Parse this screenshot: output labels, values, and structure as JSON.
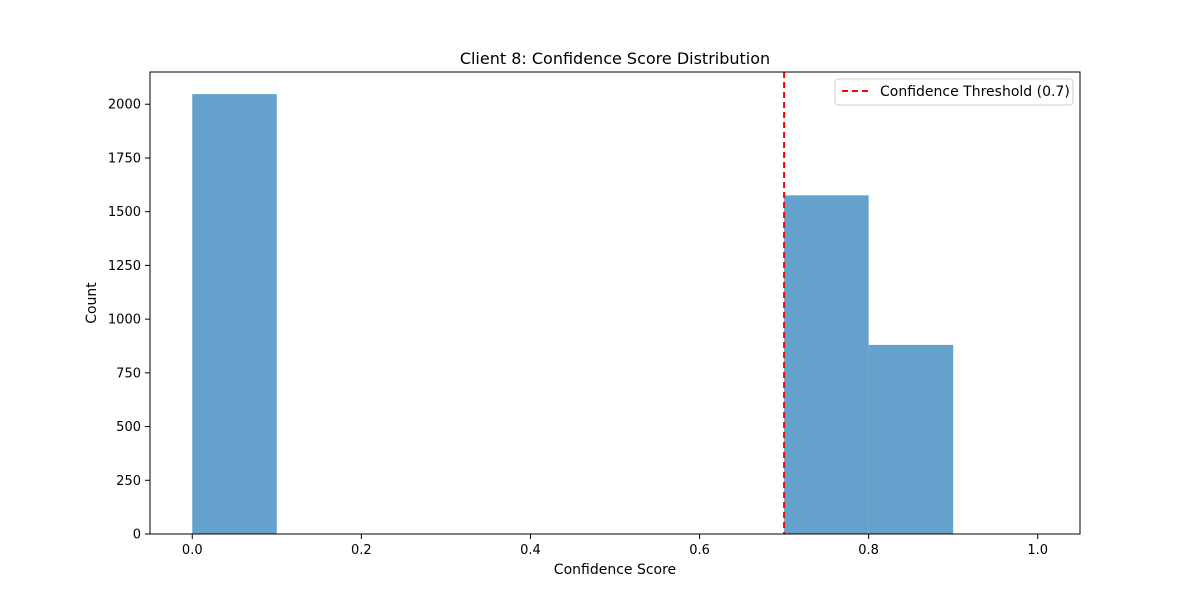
{
  "chart_data": {
    "type": "bar",
    "title": "Client 8: Confidence Score Distribution",
    "xlabel": "Confidence Score",
    "ylabel": "Count",
    "xlim": [
      -0.05,
      1.05
    ],
    "ylim": [
      0,
      2150
    ],
    "x_ticks": [
      0.0,
      0.2,
      0.4,
      0.6,
      0.8,
      1.0
    ],
    "x_tick_labels": [
      "0.0",
      "0.2",
      "0.4",
      "0.6",
      "0.8",
      "1.0"
    ],
    "y_ticks": [
      0,
      250,
      500,
      750,
      1000,
      1250,
      1500,
      1750,
      2000
    ],
    "y_tick_labels": [
      "0",
      "250",
      "500",
      "750",
      "1000",
      "1250",
      "1500",
      "1750",
      "2000"
    ],
    "bins": [
      {
        "start": 0.0,
        "end": 0.1,
        "count": 2047
      },
      {
        "start": 0.1,
        "end": 0.2,
        "count": 0
      },
      {
        "start": 0.2,
        "end": 0.3,
        "count": 0
      },
      {
        "start": 0.3,
        "end": 0.4,
        "count": 0
      },
      {
        "start": 0.4,
        "end": 0.5,
        "count": 0
      },
      {
        "start": 0.5,
        "end": 0.6,
        "count": 0
      },
      {
        "start": 0.6,
        "end": 0.7,
        "count": 0
      },
      {
        "start": 0.7,
        "end": 0.8,
        "count": 1576
      },
      {
        "start": 0.8,
        "end": 0.9,
        "count": 880
      },
      {
        "start": 0.9,
        "end": 1.0,
        "count": 0
      }
    ],
    "threshold": {
      "value": 0.7,
      "label": "Confidence Threshold (0.7)",
      "color": "#ff0000",
      "style": "dashed"
    },
    "bar_color": "#64a1cc",
    "legend_position": "top-right",
    "grid": false
  }
}
